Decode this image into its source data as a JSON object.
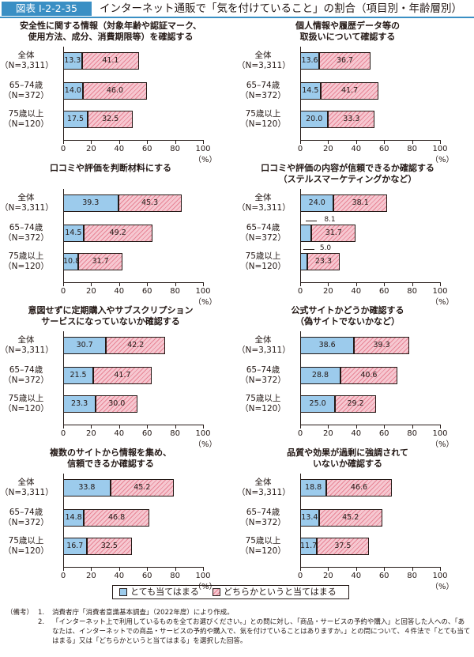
{
  "header": {
    "figure_label": "図表 I-2-2-35",
    "title": "インターネット通販で「気を付けていること」の割合（項目別・年齢層別）"
  },
  "colors": {
    "series_a": "#9ccbec",
    "series_b": "#f6c8d1",
    "accent": "#3a8fc4"
  },
  "legend": {
    "series_a": "とても当てはまる",
    "series_b": "どちらかというと当てはまる"
  },
  "chart_data": [
    {
      "type": "bar",
      "orientation": "horizontal",
      "stacked": true,
      "title_lines": [
        "安全性に関する情報（対象年齢や認証マーク、",
        "使用方法、成分、消費期限等）を確認する"
      ],
      "categories": [
        [
          "全体",
          "（N=3,311）"
        ],
        [
          "65–74歳",
          "（N=372）"
        ],
        [
          "75歳以上",
          "（N=120）"
        ]
      ],
      "series": [
        {
          "name": "とても当てはまる",
          "values": [
            13.3,
            14.0,
            17.5
          ]
        },
        {
          "name": "どちらかというと当てはまる",
          "values": [
            41.1,
            46.0,
            32.5
          ]
        }
      ],
      "xlim": [
        0,
        100
      ],
      "xticks": [
        "0",
        "20",
        "40",
        "60",
        "80",
        "100"
      ],
      "xlabel": "（%）"
    },
    {
      "type": "bar",
      "orientation": "horizontal",
      "stacked": true,
      "title_lines": [
        "個人情報や履歴データ等の",
        "取扱いについて確認する"
      ],
      "categories": [
        [
          "全体",
          "（N=3,311）"
        ],
        [
          "65–74歳",
          "（N=372）"
        ],
        [
          "75歳以上",
          "（N=120）"
        ]
      ],
      "series": [
        {
          "name": "とても当てはまる",
          "values": [
            13.6,
            14.5,
            20.0
          ]
        },
        {
          "name": "どちらかというと当てはまる",
          "values": [
            36.7,
            41.7,
            33.3
          ]
        }
      ],
      "xlim": [
        0,
        100
      ],
      "xticks": [
        "0",
        "20",
        "40",
        "60",
        "80",
        "100"
      ],
      "xlabel": "（%）"
    },
    {
      "type": "bar",
      "orientation": "horizontal",
      "stacked": true,
      "title_lines": [
        "口コミや評価を判断材料にする"
      ],
      "categories": [
        [
          "全体",
          "（N=3,311）"
        ],
        [
          "65–74歳",
          "（N=372）"
        ],
        [
          "75歳以上",
          "（N=120）"
        ]
      ],
      "series": [
        {
          "name": "とても当てはまる",
          "values": [
            39.3,
            14.5,
            10.8
          ]
        },
        {
          "name": "どちらかというと当てはまる",
          "values": [
            45.3,
            49.2,
            31.7
          ]
        }
      ],
      "xlim": [
        0,
        100
      ],
      "xticks": [
        "0",
        "20",
        "40",
        "60",
        "80",
        "100"
      ],
      "xlabel": "（%）"
    },
    {
      "type": "bar",
      "orientation": "horizontal",
      "stacked": true,
      "title_lines": [
        "口コミや評価の内容が信頼できるか確認する",
        "（ステルスマーケティングかなど）"
      ],
      "categories": [
        [
          "全体",
          "（N=3,311）"
        ],
        [
          "65–74歳",
          "（N=372）"
        ],
        [
          "75歳以上",
          "（N=120）"
        ]
      ],
      "series": [
        {
          "name": "とても当てはまる",
          "values": [
            24.0,
            8.1,
            5.0
          ]
        },
        {
          "name": "どちらかというと当てはまる",
          "values": [
            38.1,
            31.7,
            23.3
          ]
        }
      ],
      "xlim": [
        0,
        100
      ],
      "xticks": [
        "0",
        "20",
        "40",
        "60",
        "80",
        "100"
      ],
      "xlabel": "（%）"
    },
    {
      "type": "bar",
      "orientation": "horizontal",
      "stacked": true,
      "title_lines": [
        "意図せずに定期購入やサブスクリプション",
        "サービスになっていないか確認する"
      ],
      "categories": [
        [
          "全体",
          "（N=3,311）"
        ],
        [
          "65–74歳",
          "（N=372）"
        ],
        [
          "75歳以上",
          "（N=120）"
        ]
      ],
      "series": [
        {
          "name": "とても当てはまる",
          "values": [
            30.7,
            21.5,
            23.3
          ]
        },
        {
          "name": "どちらかというと当てはまる",
          "values": [
            42.2,
            41.7,
            30.0
          ]
        }
      ],
      "xlim": [
        0,
        100
      ],
      "xticks": [
        "0",
        "20",
        "40",
        "60",
        "80",
        "100"
      ],
      "xlabel": "（%）"
    },
    {
      "type": "bar",
      "orientation": "horizontal",
      "stacked": true,
      "title_lines": [
        "公式サイトかどうか確認する",
        "（偽サイトでないかなど）"
      ],
      "categories": [
        [
          "全体",
          "（N=3,311）"
        ],
        [
          "65–74歳",
          "（N=372）"
        ],
        [
          "75歳以上",
          "（N=120）"
        ]
      ],
      "series": [
        {
          "name": "とても当てはまる",
          "values": [
            38.6,
            28.8,
            25.0
          ]
        },
        {
          "name": "どちらかというと当てはまる",
          "values": [
            39.3,
            40.6,
            29.2
          ]
        }
      ],
      "xlim": [
        0,
        100
      ],
      "xticks": [
        "0",
        "20",
        "40",
        "60",
        "80",
        "100"
      ],
      "xlabel": "（%）"
    },
    {
      "type": "bar",
      "orientation": "horizontal",
      "stacked": true,
      "title_lines": [
        "複数のサイトから情報を集め、",
        "信頼できるか確認する"
      ],
      "categories": [
        [
          "全体",
          "（N=3,311）"
        ],
        [
          "65–74歳",
          "（N=372）"
        ],
        [
          "75歳以上",
          "（N=120）"
        ]
      ],
      "series": [
        {
          "name": "とても当てはまる",
          "values": [
            33.8,
            14.8,
            16.7
          ]
        },
        {
          "name": "どちらかというと当てはまる",
          "values": [
            45.2,
            46.8,
            32.5
          ]
        }
      ],
      "xlim": [
        0,
        100
      ],
      "xticks": [
        "0",
        "20",
        "40",
        "60",
        "80",
        "100"
      ],
      "xlabel": "（%）"
    },
    {
      "type": "bar",
      "orientation": "horizontal",
      "stacked": true,
      "title_lines": [
        "品質や効果が過剰に強調されて",
        "いないか確認する"
      ],
      "categories": [
        [
          "全体",
          "（N=3,311）"
        ],
        [
          "65–74歳",
          "（N=372）"
        ],
        [
          "75歳以上",
          "（N=120）"
        ]
      ],
      "series": [
        {
          "name": "とても当てはまる",
          "values": [
            18.8,
            13.4,
            11.7
          ]
        },
        {
          "name": "どちらかというと当てはまる",
          "values": [
            46.6,
            45.2,
            37.5
          ]
        }
      ],
      "xlim": [
        0,
        100
      ],
      "xticks": [
        "0",
        "20",
        "40",
        "60",
        "80",
        "100"
      ],
      "xlabel": "（%）"
    }
  ],
  "notes": {
    "heading": "（備考）",
    "items": [
      {
        "num": "1.",
        "text": "消費者庁「消費者意識基本調査」（2022年度）により作成。"
      },
      {
        "num": "2.",
        "text": "「インターネット上で利用しているものを全てお選びください。」との問に対し、「商品・サービスの予約や購入」と回答した人への、「あなたは、インターネットでの商品・サービスの予約や購入で、気を付けていることはありますか。」との問について、４件法で「とても当てはまる」又は「どちらかというと当てはまる」を選択した回答。"
      }
    ]
  }
}
